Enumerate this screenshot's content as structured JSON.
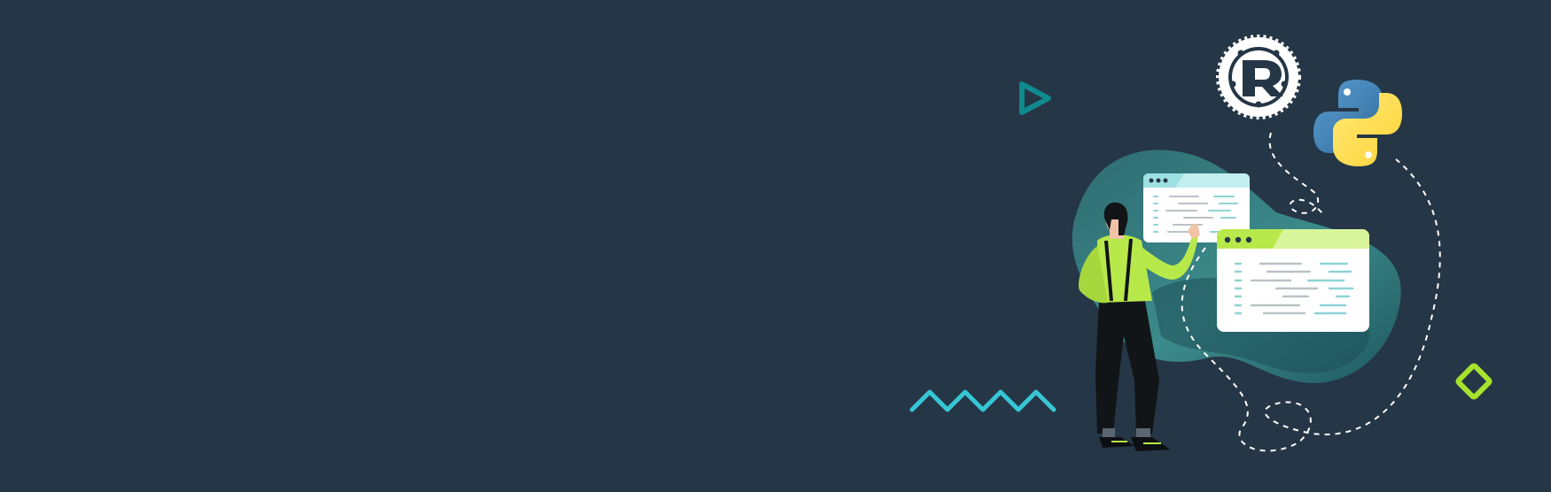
{
  "banner": {
    "background": "#253646",
    "illustration": "developer-with-code-windows",
    "logos": {
      "rust": {
        "letter": "R",
        "color": "#ffffff"
      },
      "python": {
        "blue": "#3775a9",
        "yellow": "#ffd43b"
      }
    },
    "colors": {
      "blob_dark": "#1f5a63",
      "blob_light": "#4aa7a7",
      "accent_green": "#b8e94a",
      "accent_teal": "#0f8a8f",
      "accent_cyan": "#37c6d4",
      "window_teal": "#9fe0e3",
      "window_green": "#c9f07c",
      "code_line": "#b9c2c6",
      "code_teal": "#8fd3d3"
    }
  }
}
